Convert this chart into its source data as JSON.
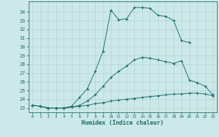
{
  "title": "",
  "xlabel": "Humidex (Indice chaleur)",
  "xlim": [
    -0.5,
    23.5
  ],
  "ylim": [
    22.5,
    35.2
  ],
  "yticks": [
    23,
    24,
    25,
    26,
    27,
    28,
    29,
    30,
    31,
    32,
    33,
    34
  ],
  "xticks": [
    0,
    1,
    2,
    3,
    4,
    5,
    6,
    7,
    8,
    9,
    10,
    11,
    12,
    13,
    14,
    15,
    16,
    17,
    18,
    19,
    20,
    21,
    22,
    23
  ],
  "bg_color": "#cce8e8",
  "line_color": "#1a6b6b",
  "grid_color": "#b0d4d4",
  "lines": [
    {
      "x": [
        0,
        1,
        2,
        3,
        4,
        5,
        6,
        7,
        8,
        9,
        10,
        11,
        12,
        13,
        14,
        15,
        16,
        17,
        18,
        19,
        20,
        21,
        22,
        23
      ],
      "y": [
        23.3,
        23.2,
        23.0,
        23.0,
        23.0,
        23.1,
        23.2,
        23.3,
        23.5,
        23.6,
        23.8,
        23.9,
        24.0,
        24.1,
        24.2,
        24.3,
        24.4,
        24.5,
        24.6,
        24.6,
        24.7,
        24.7,
        24.6,
        24.4
      ]
    },
    {
      "x": [
        0,
        1,
        2,
        3,
        4,
        5,
        6,
        7,
        8,
        9,
        10,
        11,
        12,
        13,
        14,
        15,
        16,
        17,
        18,
        19,
        20,
        21,
        22,
        23
      ],
      "y": [
        23.3,
        23.2,
        23.0,
        23.0,
        23.0,
        23.1,
        23.3,
        23.8,
        24.5,
        25.5,
        26.5,
        27.2,
        27.8,
        28.5,
        28.8,
        28.7,
        28.5,
        28.3,
        28.1,
        28.4,
        26.2,
        25.9,
        25.5,
        24.5
      ]
    },
    {
      "x": [
        0,
        1,
        2,
        3,
        4,
        5,
        6,
        7,
        8,
        9,
        10,
        11,
        12,
        13,
        14,
        15,
        16,
        17,
        18,
        19,
        20
      ],
      "y": [
        23.3,
        23.2,
        23.0,
        23.0,
        23.0,
        23.2,
        24.2,
        25.2,
        27.2,
        29.5,
        34.2,
        33.1,
        33.2,
        34.5,
        34.5,
        34.4,
        33.6,
        33.5,
        33.0,
        30.7,
        30.5
      ]
    }
  ]
}
